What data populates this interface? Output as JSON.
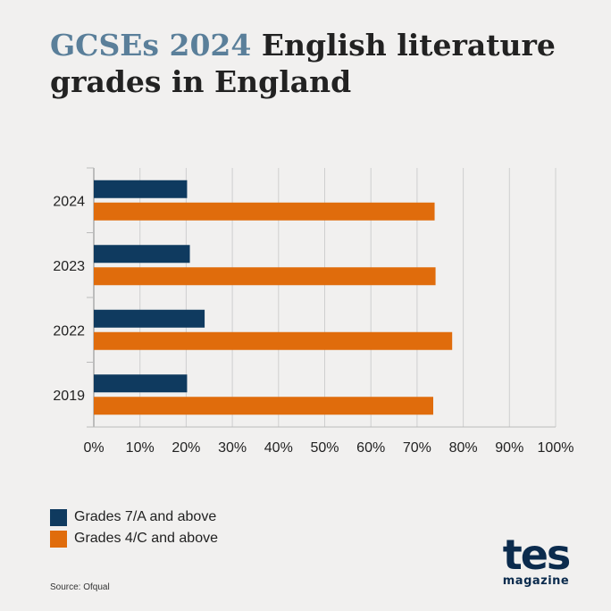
{
  "title": {
    "accent": "GCSEs 2024",
    "rest": " English literature grades in England"
  },
  "colors": {
    "background": "#f1f0ef",
    "accent_title": "#5a7f9a",
    "series_7a": "#0f3a5f",
    "series_4c": "#e06c0c",
    "grid": "#cfcfcf",
    "logo": "#0b2b4d"
  },
  "chart_data": {
    "type": "bar",
    "orientation": "horizontal",
    "categories": [
      "2024",
      "2023",
      "2022",
      "2019"
    ],
    "series": [
      {
        "name": "Grades 7/A and above",
        "color": "#0f3a5f",
        "values": [
          20.2,
          20.8,
          24.0,
          20.2
        ]
      },
      {
        "name": "Grades 4/C and above",
        "color": "#e06c0c",
        "values": [
          73.8,
          74.0,
          77.6,
          73.5
        ]
      }
    ],
    "xlim": [
      0,
      100
    ],
    "x_ticks": [
      "0%",
      "10%",
      "20%",
      "30%",
      "40%",
      "50%",
      "60%",
      "70%",
      "80%",
      "90%",
      "100%"
    ],
    "grid": true,
    "legend_placement": "bottom-left"
  },
  "legend": [
    {
      "label": "Grades 7/A and above",
      "color": "#0f3a5f"
    },
    {
      "label": "Grades 4/C and above",
      "color": "#e06c0c"
    }
  ],
  "source": "Source: Ofqual",
  "logo": {
    "main": "tes",
    "sub": "magazine"
  }
}
